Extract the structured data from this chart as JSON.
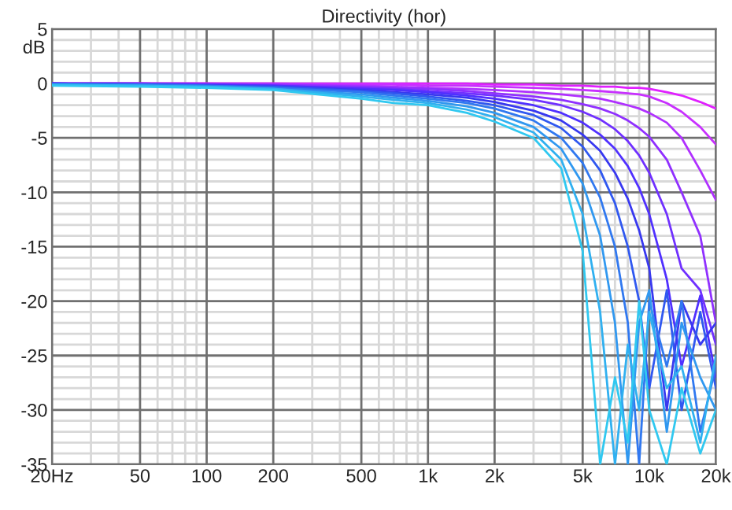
{
  "chart_data": {
    "type": "line",
    "title": "Directivity (hor)",
    "ylabel": "dB",
    "log": "x",
    "grid": true,
    "legend": false,
    "marker": "none",
    "line_style": "solid",
    "x": [
      20,
      50,
      100,
      200,
      500,
      700,
      1000,
      1500,
      2000,
      3000,
      4000,
      5000,
      6000,
      7000,
      8000,
      9000,
      10000,
      12000,
      14000,
      17000,
      20000
    ],
    "xlim": [
      20,
      20000
    ],
    "xticks": [
      {
        "value": 20,
        "label": "20Hz"
      },
      {
        "value": 30,
        "label": null
      },
      {
        "value": 40,
        "label": null
      },
      50,
      {
        "value": 60,
        "label": null
      },
      {
        "value": 70,
        "label": null
      },
      {
        "value": 80,
        "label": null
      },
      {
        "value": 90,
        "label": null
      },
      100,
      200,
      {
        "value": 300,
        "label": null
      },
      {
        "value": 400,
        "label": null
      },
      500,
      {
        "value": 600,
        "label": null
      },
      {
        "value": 700,
        "label": null
      },
      {
        "value": 800,
        "label": null
      },
      {
        "value": 900,
        "label": null
      },
      {
        "value": 1000,
        "label": "1k"
      },
      {
        "value": 2000,
        "label": "2k"
      },
      {
        "value": 3000,
        "label": null
      },
      {
        "value": 4000,
        "label": null
      },
      {
        "value": 5000,
        "label": "5k"
      },
      {
        "value": 6000,
        "label": null
      },
      {
        "value": 7000,
        "label": null
      },
      {
        "value": 8000,
        "label": null
      },
      {
        "value": 9000,
        "label": null
      },
      {
        "value": 10000,
        "label": "10k"
      },
      {
        "value": 20000,
        "label": "20k"
      }
    ],
    "ylim": [
      -35,
      5
    ],
    "yticks": [
      5,
      {
        "value": 4,
        "label": null
      },
      {
        "value": 3,
        "label": null
      },
      {
        "value": 2,
        "label": null
      },
      {
        "value": 1,
        "label": null
      },
      0,
      {
        "value": -1,
        "label": null
      },
      {
        "value": -2,
        "label": null
      },
      {
        "value": -3,
        "label": null
      },
      {
        "value": -4,
        "label": null
      },
      -5,
      {
        "value": -6,
        "label": null
      },
      {
        "value": -7,
        "label": null
      },
      {
        "value": -8,
        "label": null
      },
      {
        "value": -9,
        "label": null
      },
      -10,
      {
        "value": -11,
        "label": null
      },
      {
        "value": -12,
        "label": null
      },
      {
        "value": -13,
        "label": null
      },
      {
        "value": -14,
        "label": null
      },
      -15,
      {
        "value": -16,
        "label": null
      },
      {
        "value": -17,
        "label": null
      },
      {
        "value": -18,
        "label": null
      },
      {
        "value": -19,
        "label": null
      },
      -20,
      {
        "value": -21,
        "label": null
      },
      {
        "value": -22,
        "label": null
      },
      {
        "value": -23,
        "label": null
      },
      {
        "value": -24,
        "label": null
      },
      -25,
      {
        "value": -26,
        "label": null
      },
      {
        "value": -27,
        "label": null
      },
      {
        "value": -28,
        "label": null
      },
      {
        "value": -29,
        "label": null
      },
      -30,
      {
        "value": -31,
        "label": null
      },
      {
        "value": -32,
        "label": null
      },
      {
        "value": -33,
        "label": null
      },
      {
        "value": -34,
        "label": null
      },
      -35
    ],
    "series": [
      {
        "color": "#e020ff",
        "values": [
          0,
          0,
          0,
          0,
          0,
          0,
          0,
          0,
          -0.1,
          -0.1,
          -0.2,
          -0.2,
          -0.3,
          -0.3,
          -0.4,
          -0.4,
          -0.5,
          -0.8,
          -1.1,
          -1.7,
          -2.3
        ]
      },
      {
        "color": "#c830ff",
        "values": [
          0,
          0,
          0,
          0,
          -0.1,
          -0.1,
          -0.2,
          -0.2,
          -0.3,
          -0.4,
          -0.5,
          -0.6,
          -0.7,
          -0.8,
          -0.9,
          -1.0,
          -1.2,
          -1.8,
          -2.6,
          -4.0,
          -5.6
        ]
      },
      {
        "color": "#b030ff",
        "values": [
          0,
          0,
          0,
          -0.1,
          -0.2,
          -0.3,
          -0.4,
          -0.5,
          -0.6,
          -0.8,
          -1.0,
          -1.2,
          -1.4,
          -1.7,
          -2.0,
          -2.3,
          -2.7,
          -3.6,
          -5.0,
          -8.0,
          -10.7
        ]
      },
      {
        "color": "#9030ff",
        "values": [
          0,
          0,
          -0.1,
          -0.1,
          -0.3,
          -0.4,
          -0.5,
          -0.7,
          -0.9,
          -1.2,
          -1.5,
          -1.9,
          -2.3,
          -2.8,
          -3.4,
          -4.1,
          -4.9,
          -7.0,
          -10.0,
          -14.0,
          -22.0
        ]
      },
      {
        "color": "#7030ff",
        "values": [
          0,
          0,
          -0.1,
          -0.2,
          -0.4,
          -0.5,
          -0.7,
          -0.9,
          -1.1,
          -1.5,
          -2.0,
          -2.6,
          -3.3,
          -4.2,
          -5.3,
          -6.6,
          -8.2,
          -12.0,
          -17.0,
          -19.0,
          -24.0
        ]
      },
      {
        "color": "#5030ff",
        "values": [
          0,
          -0.1,
          -0.1,
          -0.2,
          -0.5,
          -0.6,
          -0.8,
          -1.1,
          -1.4,
          -2.0,
          -2.7,
          -3.6,
          -4.7,
          -6.0,
          -7.6,
          -9.6,
          -12.0,
          -18.0,
          -26.0,
          -19.5,
          -27.0
        ]
      },
      {
        "color": "#3838f0",
        "values": [
          0,
          -0.1,
          -0.2,
          -0.3,
          -0.6,
          -0.8,
          -1.0,
          -1.3,
          -1.7,
          -2.5,
          -3.4,
          -4.7,
          -6.2,
          -8.2,
          -10.6,
          -13.5,
          -17.0,
          -30.0,
          -20.0,
          -24.0,
          -22.0
        ]
      },
      {
        "color": "#3058f0",
        "values": [
          0,
          -0.1,
          -0.2,
          -0.3,
          -0.7,
          -0.9,
          -1.2,
          -1.6,
          -2.0,
          -2.9,
          -4.1,
          -5.8,
          -8.0,
          -11.0,
          -15.0,
          -20.0,
          -28.0,
          -19.0,
          -30.0,
          -21.0,
          -28.0
        ]
      },
      {
        "color": "#3078f0",
        "values": [
          -0.1,
          -0.1,
          -0.2,
          -0.4,
          -0.8,
          -1.1,
          -1.4,
          -1.8,
          -2.3,
          -3.4,
          -5.0,
          -7.3,
          -10.5,
          -15.0,
          -22.0,
          -35.0,
          -20.0,
          -26.0,
          -20.0,
          -32.0,
          -26.0
        ]
      },
      {
        "color": "#3098f0",
        "values": [
          -0.1,
          -0.2,
          -0.3,
          -0.5,
          -1.0,
          -1.3,
          -1.6,
          -2.1,
          -2.7,
          -4.0,
          -6.0,
          -9.2,
          -14.0,
          -22.0,
          -35.0,
          -22.0,
          -19.0,
          -32.0,
          -22.0,
          -27.0,
          -30.0
        ]
      },
      {
        "color": "#30b0f0",
        "values": [
          -0.1,
          -0.2,
          -0.3,
          -0.5,
          -1.2,
          -1.5,
          -1.8,
          -2.4,
          -3.1,
          -4.5,
          -7.0,
          -12.0,
          -21.0,
          -35.0,
          -24.0,
          -30.0,
          -21.0,
          -28.0,
          -26.0,
          -33.0,
          -25.0
        ]
      },
      {
        "color": "#30c8f0",
        "values": [
          -0.2,
          -0.3,
          -0.4,
          -0.6,
          -1.4,
          -1.8,
          -2.0,
          -2.7,
          -3.5,
          -5.0,
          -7.8,
          -15.4,
          -35.0,
          -27.0,
          -33.0,
          -20.0,
          -30.0,
          -35.0,
          -28.0,
          -34.0,
          -30.0
        ]
      }
    ]
  }
}
